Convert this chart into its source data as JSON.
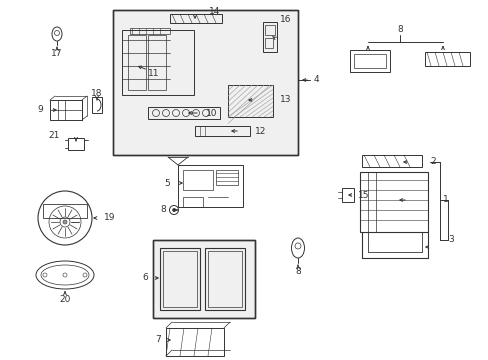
{
  "bg_color": "#ffffff",
  "line_color": "#333333",
  "gray_color": "#999999",
  "light_gray": "#cccccc",
  "figsize": [
    4.89,
    3.6
  ],
  "dpi": 100,
  "hatching_color": "#888888"
}
